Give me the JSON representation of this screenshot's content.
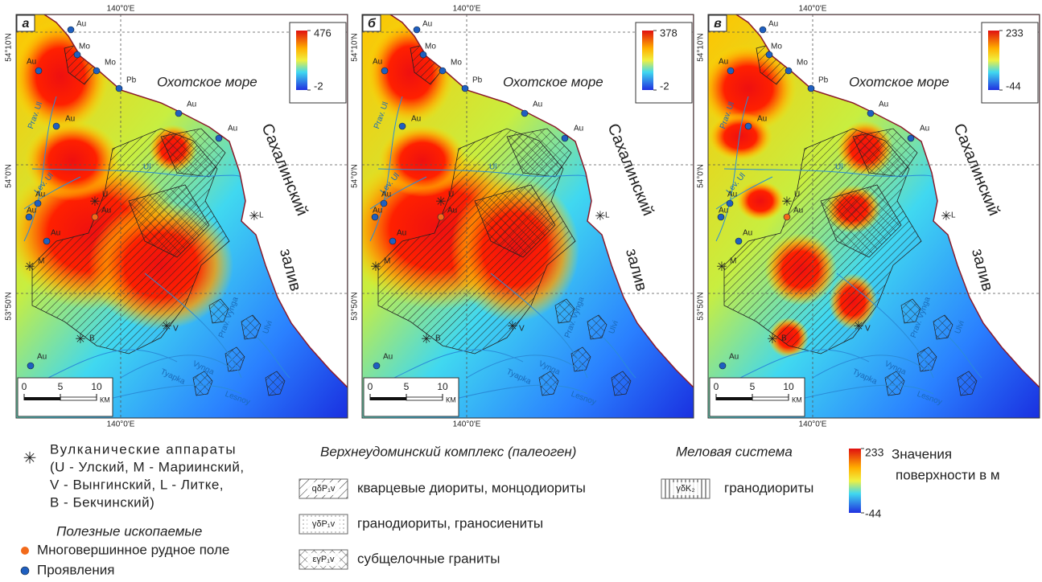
{
  "panels": [
    {
      "letter": "а",
      "colorbar": {
        "max": 476,
        "min": -2
      }
    },
    {
      "letter": "б",
      "colorbar": {
        "max": 378,
        "min": -2
      }
    },
    {
      "letter": "в",
      "colorbar": {
        "max": 233,
        "min": -44
      }
    }
  ],
  "map_labels": {
    "lon": "140°0'E",
    "lat": [
      "54°10'N",
      "54°0'N",
      "53°50'N"
    ],
    "sea": "Охотское море",
    "bay": [
      "Сахалинский",
      "залив"
    ],
    "scale_ticks": [
      0,
      5,
      10
    ],
    "km": "КМ",
    "deposits": [
      "Au",
      "Mo",
      "Mo",
      "Pb",
      "Au",
      "Au",
      "Au",
      "Au",
      "Au",
      "Au",
      "Au",
      "Au",
      "Au"
    ],
    "volcanoes": [
      "U",
      "M",
      "V",
      "L",
      "B"
    ],
    "rivers": [
      "Prav. Ul",
      "Ul",
      "Lev. Ul",
      "Tyapka",
      "Vynga",
      "Lesnoy",
      "Prav. Vynga",
      "Ulvi"
    ]
  },
  "legend": {
    "volcanoes": [
      "Вулканические аппараты",
      "(U - Улский, M - Мариинский,",
      "V - Вынгинский, L - Литке,",
      "B - Бекчинский)"
    ],
    "minerals_title": "Полезные ископаемые",
    "ore_field": "Многовершинное рудное поле",
    "occurrences": "Проявления",
    "paleogene_title": "Верхнеудоминский комплекс (палеоген)",
    "paleogene_units": [
      {
        "code": "qδP₁v",
        "text": "кварцевые диориты, монцодиориты"
      },
      {
        "code": "γδP₁v",
        "text": "гранодиориты, граносиениты"
      },
      {
        "code": "εγP₁v",
        "text": "субщелочные граниты"
      }
    ],
    "cretaceous_title": "Меловая система",
    "cretaceous_unit": {
      "code": "γδK₂",
      "text": "гранодиориты"
    },
    "colorbar": {
      "max": 233,
      "min": -44
    },
    "colorbar_title": [
      "Значения",
      "поверхности в м"
    ]
  }
}
